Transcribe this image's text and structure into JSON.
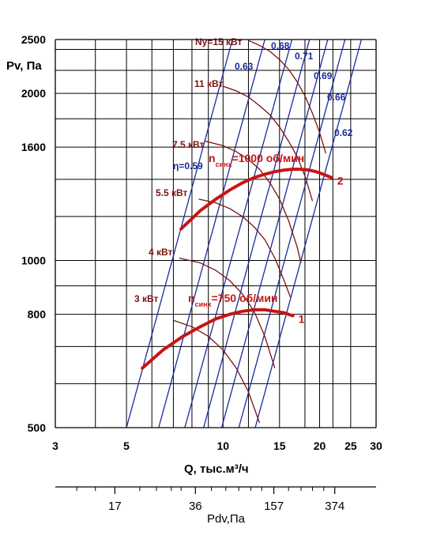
{
  "chart_data": {
    "type": "line",
    "x_scale": "log",
    "y_scale": "log",
    "xlim": [
      3,
      30
    ],
    "ylim": [
      500,
      2500
    ],
    "x_ticks": [
      3,
      5,
      10,
      15,
      20,
      25,
      30
    ],
    "x_tick_labels": [
      "3",
      "5",
      "10",
      "15",
      "20",
      "25",
      "30"
    ],
    "x_minor_ticks": [
      4,
      6,
      7,
      8,
      9,
      12,
      18,
      22
    ],
    "y_ticks": [
      500,
      800,
      1000,
      1600,
      2000,
      2500
    ],
    "y_tick_labels": [
      "500",
      "800",
      "1000",
      "1600",
      "2000",
      "2500"
    ],
    "y_grid": [
      600,
      700,
      900,
      1200,
      1400,
      1800,
      2200,
      2400
    ],
    "grid": true,
    "xlabel": "Q, тыс.м³/ч",
    "ylabel": "Pv, Па",
    "speed_curves": [
      {
        "name": "n синх =750 об/мин",
        "label_prefix": "n",
        "label_sub": "синх",
        "label_rest": "=750 об/мин",
        "end_label": "1",
        "x": [
          5.6,
          6.5,
          7.5,
          8.5,
          9.5,
          10.5,
          11.5,
          12.5,
          13.5,
          14.5,
          15.5,
          16.5
        ],
        "y": [
          640,
          690,
          730,
          760,
          785,
          800,
          810,
          815,
          815,
          810,
          805,
          795
        ]
      },
      {
        "name": "n синх =1000 об/мин",
        "label_prefix": "n",
        "label_sub": "синх",
        "label_rest": "=1000 об/мин",
        "end_label": "2",
        "x": [
          7.4,
          8.5,
          9.5,
          10.5,
          11.5,
          12.5,
          13.5,
          14.5,
          15.5,
          16.5,
          17.5,
          18.5,
          19.5,
          20.5,
          21.8
        ],
        "y": [
          1140,
          1230,
          1290,
          1340,
          1380,
          1410,
          1430,
          1445,
          1455,
          1460,
          1460,
          1455,
          1445,
          1430,
          1410
        ]
      }
    ],
    "power_lines": [
      {
        "label": "3 кВт",
        "x": [
          7.0,
          8.0,
          9.0,
          10.0,
          11.0,
          12.0,
          13.0
        ],
        "y": [
          780,
          760,
          730,
          690,
          640,
          580,
          510
        ]
      },
      {
        "label": "4 кВт",
        "x": [
          7.3,
          8.5,
          9.5,
          10.5,
          11.5,
          12.5,
          13.5,
          14.5
        ],
        "y": [
          1010,
          990,
          960,
          920,
          870,
          810,
          730,
          640
        ]
      },
      {
        "label": "5.5 кВт",
        "x": [
          8.4,
          9.5,
          10.5,
          11.5,
          12.5,
          13.5,
          14.5,
          15.5,
          16.2
        ],
        "y": [
          1290,
          1270,
          1240,
          1200,
          1150,
          1090,
          1010,
          920,
          860
        ]
      },
      {
        "label": "7.5 кВт",
        "x": [
          8.8,
          10.0,
          11.0,
          12.0,
          13.0,
          14.0,
          15.0,
          16.0,
          17.0,
          17.5
        ],
        "y": [
          1640,
          1610,
          1570,
          1520,
          1460,
          1380,
          1290,
          1180,
          1060,
          990
        ]
      },
      {
        "label": "11 кВт",
        "x": [
          10.0,
          11.0,
          12.0,
          13.0,
          14.0,
          15.0,
          16.0,
          17.0,
          18.0,
          19.0
        ],
        "y": [
          2060,
          2020,
          1970,
          1900,
          1830,
          1740,
          1640,
          1540,
          1420,
          1280
        ]
      },
      {
        "label": "Ny=15 кВт",
        "x": [
          12.0,
          13.0,
          14.0,
          15.0,
          16.0,
          17.0,
          18.0,
          19.0,
          20.0,
          20.9
        ],
        "y": [
          2490,
          2440,
          2380,
          2300,
          2210,
          2100,
          1980,
          1840,
          1700,
          1560
        ]
      }
    ],
    "efficiency_lines": [
      {
        "label": "η=0.59",
        "q_at_500": 5.0,
        "q_at_2500": 10.7
      },
      {
        "label": "0.63",
        "q_at_500": 6.3,
        "q_at_2500": 13.5
      },
      {
        "label": "0.68",
        "q_at_500": 7.6,
        "q_at_2500": 16.4
      },
      {
        "label": "0.71",
        "q_at_500": 8.7,
        "q_at_2500": 18.6
      },
      {
        "label": "0.69",
        "q_at_500": 9.9,
        "q_at_2500": 21.2
      },
      {
        "label": "0.66",
        "q_at_500": 11.2,
        "q_at_2500": 24.0
      },
      {
        "label": "0.62",
        "q_at_500": 12.6,
        "q_at_2500": 27.0
      }
    ]
  },
  "pdv_scale": {
    "title": "Pdv,Па",
    "major_ticks": [
      {
        "q": 4.6,
        "label": "17"
      },
      {
        "q": 8.2,
        "label": "36"
      },
      {
        "q": 14.4,
        "label": "157"
      },
      {
        "q": 22.3,
        "label": "374"
      }
    ],
    "minor_ticks": [
      3.5,
      4.0,
      5.5,
      6.2,
      6.9,
      7.4,
      9.2,
      10.2,
      11.2,
      12.2,
      13.2,
      16.0,
      17.5,
      19.0,
      20.6
    ]
  },
  "colors": {
    "speed": "#c81414",
    "power": "#7a1212",
    "efficiency": "#1a2a9a",
    "grid": "#000000"
  }
}
